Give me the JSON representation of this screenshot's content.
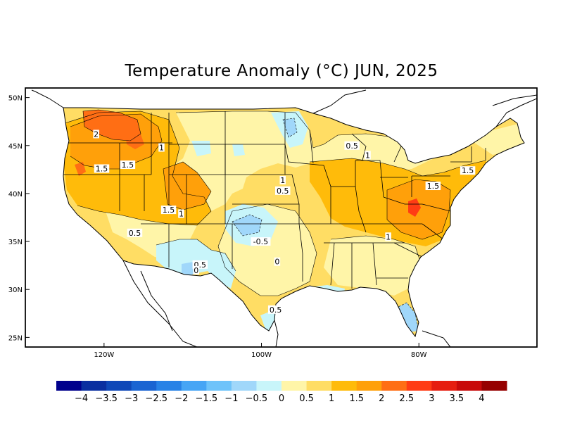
{
  "title": "Temperature Anomaly (°C) JUN, 2025",
  "map": {
    "lat_labels": [
      "50N",
      "45N",
      "40N",
      "35N",
      "30N",
      "25N"
    ],
    "lat_values": [
      50,
      45,
      40,
      35,
      30,
      25
    ],
    "lon_labels": [
      "120W",
      "100W",
      "80W"
    ],
    "lon_values": [
      -120,
      -100,
      -80
    ],
    "lon_range": [
      -130,
      -65
    ],
    "lat_range": [
      24,
      51
    ],
    "contour_labels": [
      {
        "text": "2",
        "lon": -121.0,
        "lat": 46.2
      },
      {
        "text": "1.5",
        "lon": -120.3,
        "lat": 42.6
      },
      {
        "text": "1.5",
        "lon": -117.0,
        "lat": 43.0
      },
      {
        "text": "1",
        "lon": -112.7,
        "lat": 44.8
      },
      {
        "text": "1.5",
        "lon": -111.8,
        "lat": 38.3
      },
      {
        "text": "1",
        "lon": -110.2,
        "lat": 37.9
      },
      {
        "text": "0.5",
        "lon": -116.1,
        "lat": 35.9
      },
      {
        "text": "0.5",
        "lon": -107.8,
        "lat": 32.6
      },
      {
        "text": "0",
        "lon": -108.3,
        "lat": 32.0
      },
      {
        "text": "-0.5",
        "lon": -100.1,
        "lat": 35.0
      },
      {
        "text": "0",
        "lon": -98.0,
        "lat": 32.9
      },
      {
        "text": "0.5",
        "lon": -98.2,
        "lat": 27.9
      },
      {
        "text": "1",
        "lon": -97.3,
        "lat": 41.4
      },
      {
        "text": "0.5",
        "lon": -97.3,
        "lat": 40.3
      },
      {
        "text": "0.5",
        "lon": -88.5,
        "lat": 45.0
      },
      {
        "text": "1",
        "lon": -86.5,
        "lat": 44.0
      },
      {
        "text": "1.5",
        "lon": -78.2,
        "lat": 40.8
      },
      {
        "text": "1.5",
        "lon": -73.8,
        "lat": 42.4
      },
      {
        "text": "1",
        "lon": -83.9,
        "lat": 35.5
      }
    ]
  },
  "colorbar": {
    "labels": [
      "−4",
      "−3.5",
      "−3",
      "−2.5",
      "−2",
      "−1.5",
      "−1",
      "−0.5",
      "0",
      "0.5",
      "1",
      "1.5",
      "2",
      "2.5",
      "3",
      "3.5",
      "4"
    ],
    "colors": [
      "#00008c",
      "#0a2fa0",
      "#0f48b8",
      "#1a64d2",
      "#2882e6",
      "#46a5f5",
      "#6ec3fa",
      "#a0d7fa",
      "#c8f5fa",
      "#fff5a8",
      "#ffdd64",
      "#ffbb0a",
      "#ffa00a",
      "#ff6e14",
      "#ff3c14",
      "#e61e10",
      "#c80a0a",
      "#960000"
    ]
  }
}
